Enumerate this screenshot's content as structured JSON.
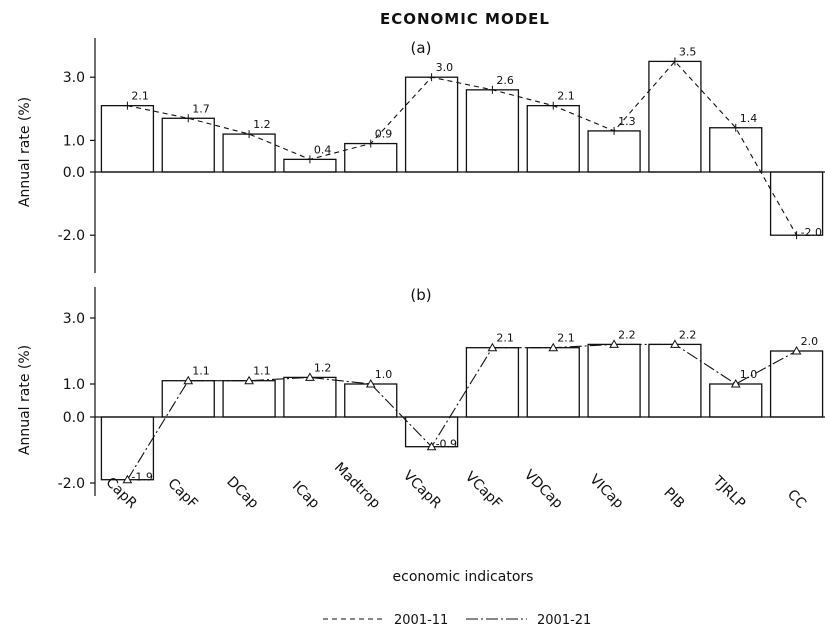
{
  "chart_data": {
    "title": "ECONOMIC MODEL",
    "xlabel": "economic indicators",
    "categories": [
      "CapR",
      "CapF",
      "DCap",
      "ICap",
      "Madtrop",
      "VCapR",
      "VCapF",
      "VDCap",
      "VICap",
      "PIB",
      "TJRLP",
      "CC"
    ],
    "panels": [
      {
        "label": "(a)",
        "type": "bar+line",
        "ylabel": "Annual rate (%)",
        "yticks": [
          "3.0",
          "1.0",
          "0.0",
          "-2.0"
        ],
        "ytick_values": [
          3.0,
          1.0,
          0.0,
          -2.0
        ],
        "ylim": [
          -2.4,
          4.2
        ],
        "series": [
          {
            "name": "2001-11",
            "line_style": "dashed",
            "marker": "plus",
            "values": [
              2.1,
              1.7,
              1.2,
              0.4,
              0.9,
              3.0,
              2.6,
              2.1,
              1.3,
              3.5,
              1.4,
              -2.0
            ],
            "labels": [
              "2.1",
              "1.7",
              "1.2",
              "0.4",
              "0.9",
              "3.0",
              "2.6",
              "2.1",
              "1.3",
              "3.5",
              "1.4",
              "-2.0"
            ]
          }
        ]
      },
      {
        "label": "(b)",
        "type": "bar+line",
        "ylabel": "Annual rate (%)",
        "yticks": [
          "3.0",
          "1.0",
          "0.0",
          "-2.0"
        ],
        "ytick_values": [
          3.0,
          1.0,
          0.0,
          -2.0
        ],
        "ylim": [
          -2.4,
          3.6
        ],
        "series": [
          {
            "name": "2001-21",
            "line_style": "dash-dot",
            "marker": "triangle",
            "values": [
              -1.9,
              1.1,
              1.1,
              1.2,
              1.0,
              -0.9,
              2.1,
              2.1,
              2.2,
              2.2,
              1.0,
              2.0
            ],
            "labels": [
              "-1.9",
              "1.1",
              "1.1",
              "1.2",
              "1.0",
              "-0.9",
              "2.1",
              "2.1",
              "2.2",
              "2.2",
              "1.0",
              "2.0"
            ]
          }
        ]
      }
    ],
    "legend": {
      "placement": "bottom-center",
      "entries": [
        {
          "label": "2001-11",
          "style": "dashed"
        },
        {
          "label": "2001-21",
          "style": "dash-dot"
        }
      ]
    },
    "grid": false
  }
}
